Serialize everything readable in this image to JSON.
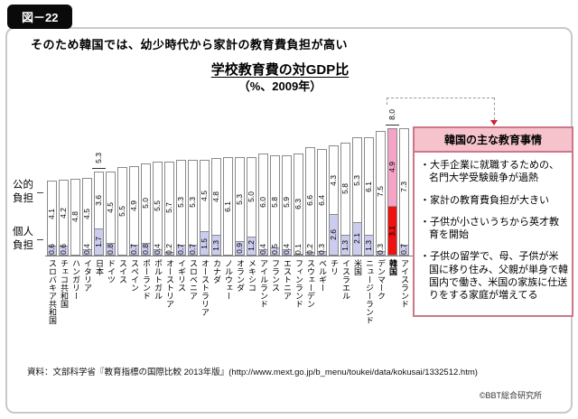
{
  "figure_label": "図－22",
  "statement": "そのため韓国では、幼少時代から家計の教育費負担が高い",
  "legend": {
    "public": "公的負担",
    "individual": "個人負担"
  },
  "chart_data": {
    "type": "bar",
    "stacked": true,
    "title": "学校教育費の対GDP比",
    "subtitle": "（%、2009年）",
    "unit": "% of GDP",
    "year": "2009",
    "ylim": [
      0,
      8.5
    ],
    "series_names": [
      "公的負担",
      "個人負担"
    ],
    "highlight": {
      "public_color": "#f5a3c7",
      "individual_color": "#ee1111"
    },
    "default_colors": {
      "public": "#ffffff",
      "individual": "#ccccee"
    },
    "countries": [
      {
        "name": "スロバキア共和国",
        "public": 4.1,
        "individual": 0.6,
        "total_label": null,
        "highlight": false
      },
      {
        "name": "チェコ共和国",
        "public": 4.2,
        "individual": 0.6,
        "total_label": null,
        "highlight": false
      },
      {
        "name": "ハンガリー",
        "public": 4.8,
        "individual": null,
        "total_label": null,
        "highlight": false
      },
      {
        "name": "イタリア",
        "public": 4.5,
        "individual": 0.4,
        "total_label": null,
        "highlight": false
      },
      {
        "name": "日本",
        "public": 3.6,
        "individual": 1.7,
        "total_label": "5.3",
        "highlight": false
      },
      {
        "name": "ドイツ",
        "public": 4.5,
        "individual": 0.8,
        "total_label": null,
        "highlight": false
      },
      {
        "name": "スイス",
        "public": 5.5,
        "individual": null,
        "total_label": null,
        "highlight": false
      },
      {
        "name": "スペイン",
        "public": 4.9,
        "individual": 0.7,
        "total_label": null,
        "highlight": false
      },
      {
        "name": "ポーランド",
        "public": 5.0,
        "individual": 0.8,
        "total_label": null,
        "highlight": false
      },
      {
        "name": "ポルトガル",
        "public": 5.5,
        "individual": 0.4,
        "total_label": null,
        "highlight": false
      },
      {
        "name": "オーストリア",
        "public": 5.7,
        "individual": 0.2,
        "total_label": null,
        "highlight": false
      },
      {
        "name": "イギリス",
        "public": 5.3,
        "individual": 0.7,
        "total_label": null,
        "highlight": false
      },
      {
        "name": "スロベニア",
        "public": 5.3,
        "individual": 0.7,
        "total_label": null,
        "highlight": false
      },
      {
        "name": "オーストラリア",
        "public": 4.5,
        "individual": 1.5,
        "total_label": null,
        "highlight": false
      },
      {
        "name": "カナダ",
        "public": 4.8,
        "individual": 1.3,
        "total_label": null,
        "highlight": false
      },
      {
        "name": "ノルウェー",
        "public": 6.1,
        "individual": null,
        "total_label": null,
        "highlight": false
      },
      {
        "name": "オランダ",
        "public": 5.3,
        "individual": 0.9,
        "total_label": null,
        "highlight": false
      },
      {
        "name": "メキシコ",
        "public": 5.0,
        "individual": 1.2,
        "total_label": null,
        "highlight": false
      },
      {
        "name": "アイルランド",
        "public": 6.0,
        "individual": 0.4,
        "total_label": null,
        "highlight": false
      },
      {
        "name": "フランス",
        "public": 5.8,
        "individual": 0.5,
        "total_label": null,
        "highlight": false
      },
      {
        "name": "エストニア",
        "public": 5.9,
        "individual": 0.4,
        "total_label": null,
        "highlight": false
      },
      {
        "name": "フィンランド",
        "public": 6.3,
        "individual": 0.1,
        "total_label": null,
        "highlight": false
      },
      {
        "name": "スウェーデン",
        "public": 6.6,
        "individual": 0.2,
        "total_label": null,
        "highlight": false
      },
      {
        "name": "ベルギー",
        "public": 6.4,
        "individual": 0.3,
        "total_label": null,
        "highlight": false
      },
      {
        "name": "チリ",
        "public": 4.3,
        "individual": 2.6,
        "total_label": null,
        "highlight": false
      },
      {
        "name": "イスラエル",
        "public": 5.8,
        "individual": 1.3,
        "total_label": null,
        "highlight": false
      },
      {
        "name": "米国",
        "public": 5.3,
        "individual": 2.1,
        "total_label": null,
        "highlight": false
      },
      {
        "name": "ニュージーランド",
        "public": 6.1,
        "individual": 1.3,
        "total_label": null,
        "highlight": false
      },
      {
        "name": "デンマーク",
        "public": 7.5,
        "individual": 0.3,
        "total_label": null,
        "highlight": false
      },
      {
        "name": "韓国",
        "public": 4.9,
        "individual": 3.1,
        "total_label": "8.0",
        "highlight": true
      },
      {
        "name": "アイスランド",
        "public": 7.3,
        "individual": 0.7,
        "total_label": null,
        "highlight": false
      }
    ]
  },
  "side_panel": {
    "title": "韓国の主な教育事情",
    "bullets": [
      "・大手企業に就職するための、名門大学受験競争が過熱",
      "・家計の教育費負担が大きい",
      "・子供が小さいうちから英才教育を開始",
      "・子供の留学で、母、子供が米国に移り住み、父親が単身で韓国内で働き、米国の家族に仕送りをする家庭が増えてる"
    ]
  },
  "source": "資料：文部科学省『教育指標の国際比較 2013年版』(http://www.mext.go.jp/b_menu/toukei/data/kokusai/1332512.htm)",
  "credit": "©BBT総合研究所"
}
